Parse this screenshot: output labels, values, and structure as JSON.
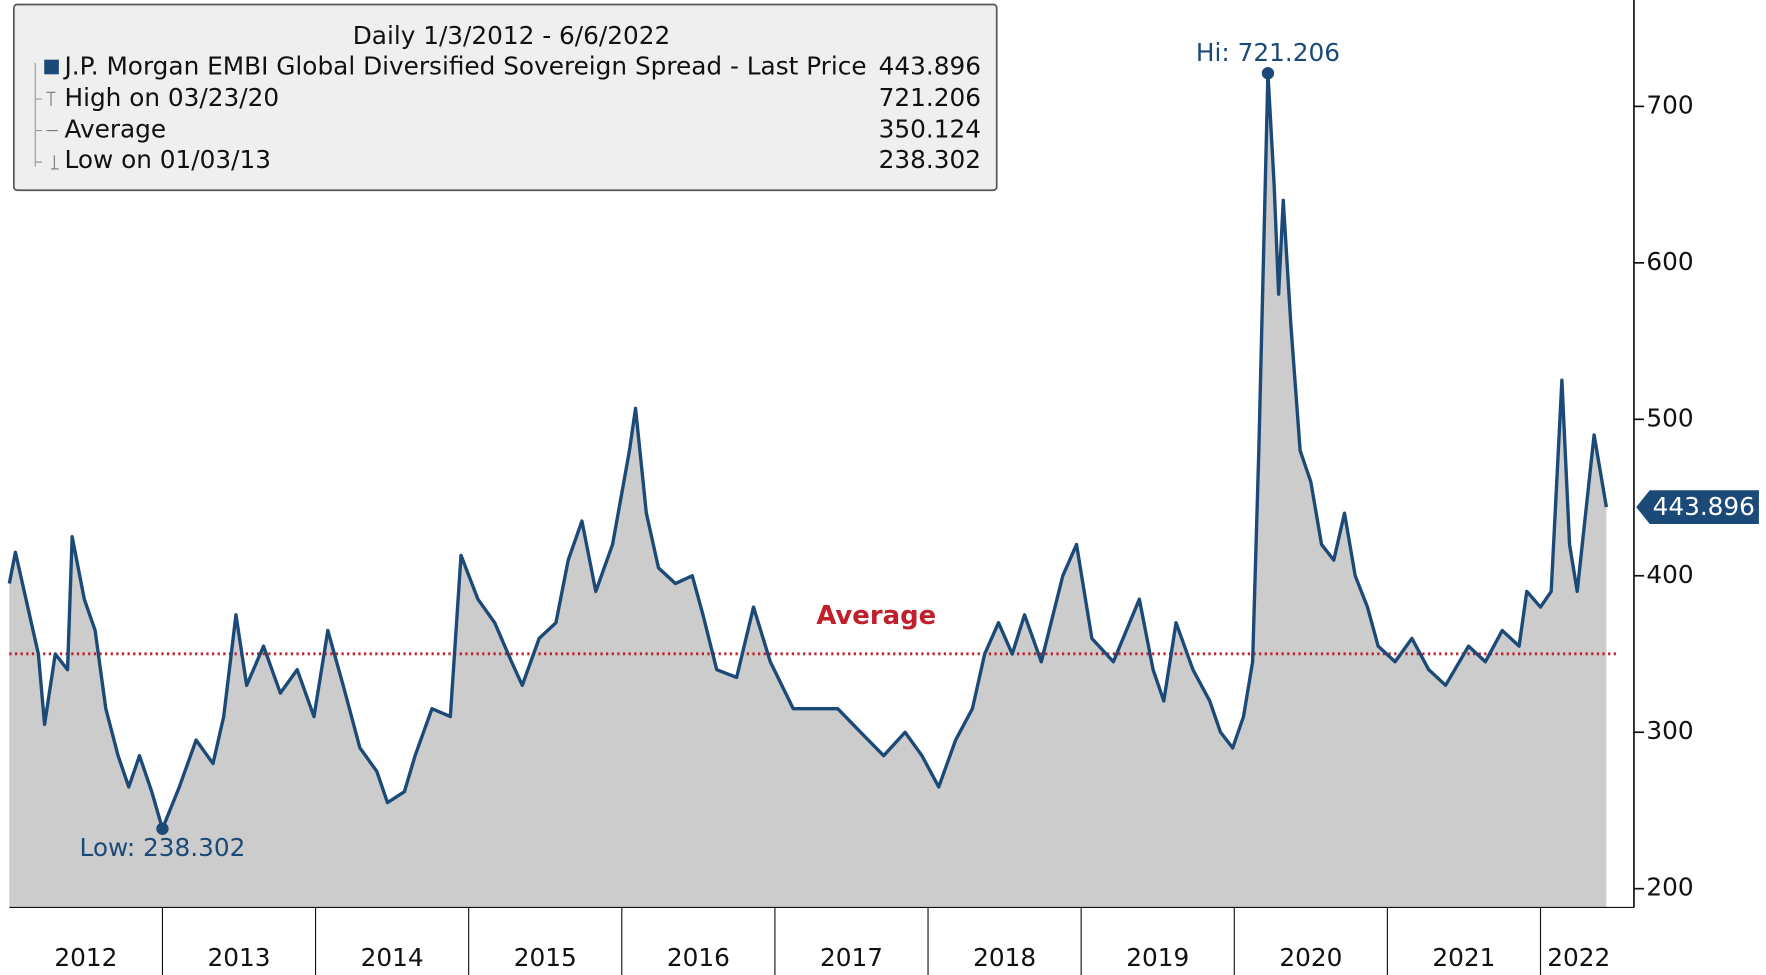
{
  "chart_data": {
    "type": "area",
    "legend_title": "Daily 1/3/2012 - 6/6/2022",
    "series": [
      {
        "name": "J.P. Morgan EMBI Global Diversified Sovereign Spread - Last Price",
        "color": "#1c4a78",
        "fill": "#cccccc",
        "x": [
          2012.0,
          2012.04,
          2012.19,
          2012.23,
          2012.3,
          2012.38,
          2012.41,
          2012.49,
          2012.56,
          2012.63,
          2012.71,
          2012.78,
          2012.85,
          2012.93,
          2013.0,
          2013.11,
          2013.22,
          2013.33,
          2013.4,
          2013.48,
          2013.55,
          2013.66,
          2013.77,
          2013.88,
          2013.99,
          2014.08,
          2014.18,
          2014.29,
          2014.4,
          2014.47,
          2014.58,
          2014.65,
          2014.76,
          2014.88,
          2014.95,
          2015.06,
          2015.17,
          2015.28,
          2015.35,
          2015.46,
          2015.57,
          2015.65,
          2015.74,
          2015.83,
          2015.94,
          2016.05,
          2016.09,
          2016.16,
          2016.24,
          2016.35,
          2016.46,
          2016.53,
          2016.62,
          2016.75,
          2016.86,
          2016.97,
          2017.12,
          2017.26,
          2017.41,
          2017.56,
          2017.71,
          2017.85,
          2017.96,
          2018.07,
          2018.18,
          2018.29,
          2018.37,
          2018.46,
          2018.55,
          2018.63,
          2018.74,
          2018.88,
          2018.97,
          2019.07,
          2019.21,
          2019.38,
          2019.47,
          2019.54,
          2019.62,
          2019.73,
          2019.84,
          2019.91,
          2019.99,
          2020.06,
          2020.12,
          2020.16,
          2020.22,
          2020.26,
          2020.29,
          2020.32,
          2020.37,
          2020.43,
          2020.5,
          2020.57,
          2020.65,
          2020.72,
          2020.79,
          2020.87,
          2020.94,
          2021.05,
          2021.16,
          2021.27,
          2021.38,
          2021.53,
          2021.64,
          2021.75,
          2021.86,
          2021.91,
          2022.0,
          2022.07,
          2022.14,
          2022.19,
          2022.24,
          2022.35,
          2022.43
        ],
        "values": [
          395,
          415,
          350,
          305,
          350,
          340,
          425,
          385,
          365,
          315,
          285,
          265,
          285,
          262,
          238.302,
          265,
          295,
          280,
          310,
          375,
          330,
          355,
          325,
          340,
          310,
          365,
          330,
          290,
          275,
          255,
          262,
          285,
          315,
          310,
          413,
          385,
          370,
          345,
          330,
          360,
          370,
          410,
          435,
          390,
          420,
          480,
          507,
          440,
          405,
          395,
          400,
          375,
          340,
          335,
          380,
          345,
          315,
          315,
          315,
          300,
          285,
          300,
          285,
          265,
          295,
          315,
          350,
          370,
          350,
          375,
          345,
          400,
          420,
          360,
          345,
          385,
          340,
          320,
          370,
          340,
          320,
          300,
          290,
          310,
          345,
          480,
          721.206,
          650,
          580,
          640,
          560,
          480,
          460,
          420,
          410,
          440,
          400,
          380,
          355,
          345,
          360,
          340,
          330,
          355,
          345,
          365,
          355,
          390,
          380,
          390,
          525,
          420,
          390,
          490,
          443.896
        ]
      }
    ],
    "high_label": "High on 03/23/20",
    "low_label": "Low on 01/03/13",
    "average_label": "Average",
    "average": 350.124,
    "average_color": "#c0202a",
    "hi_annotation": "Hi: 721.206",
    "low_annotation": "Low: 238.302",
    "categories": [
      "2012",
      "2013",
      "2014",
      "2015",
      "2016",
      "2017",
      "2018",
      "2019",
      "2020",
      "2021",
      "2022"
    ],
    "xlim": [
      2012,
      2022.5
    ],
    "xticks": [
      2013,
      2014,
      2015,
      2016,
      2017,
      2018,
      2019,
      2020,
      2021,
      2022
    ],
    "ylim": [
      188,
      768
    ],
    "yticks": [
      200,
      300,
      400,
      500,
      600,
      700
    ]
  }
}
